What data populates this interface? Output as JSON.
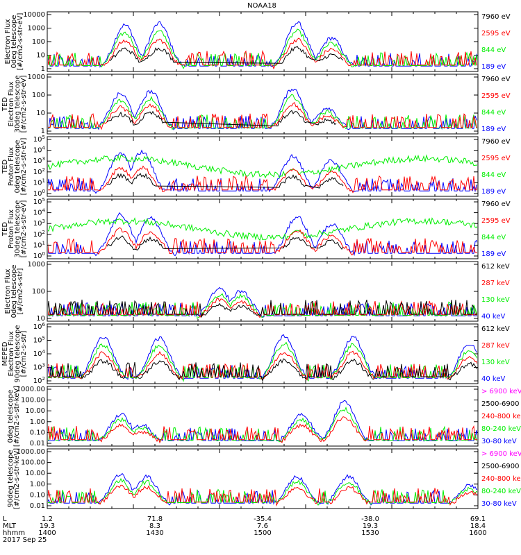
{
  "title": "NOAA18",
  "colors": {
    "blue": "#0000ff",
    "red": "#ff0000",
    "green": "#00ee00",
    "black": "#000000",
    "magenta": "#ff00ff"
  },
  "footer": {
    "row_labels": [
      "L",
      "MLT",
      "hhmm",
      "2017 Sep 25"
    ],
    "columns": [
      {
        "L": "1.2",
        "MLT": "19.3",
        "hhmm": "1400"
      },
      {
        "L": "71.8",
        "MLT": "8.3",
        "hhmm": "1430"
      },
      {
        "L": "-35.4",
        "MLT": "7.6",
        "hhmm": "1500"
      },
      {
        "L": "-38.0",
        "MLT": "19.3",
        "hhmm": "1530"
      },
      {
        "L": "69.1",
        "MLT": "18.4",
        "hhmm": "1600"
      }
    ]
  },
  "chart_data": [
    {
      "type": "line",
      "ylabel": [
        "Electron Flux",
        "0deg telescope",
        "[#/cm2-s-str-eV]"
      ],
      "y_scale": "log",
      "ticks": [
        "10000",
        "1000",
        "100",
        "10",
        "1"
      ],
      "legend": [
        {
          "text": "7960 eV",
          "color": "black"
        },
        {
          "text": "2595 eV",
          "color": "red"
        },
        {
          "text": "844 eV",
          "color": "green"
        },
        {
          "text": "189 eV",
          "color": "blue"
        }
      ]
    },
    {
      "type": "line",
      "ylabel": [
        "TED",
        "Electron Flux",
        "30deg telescope",
        "[#/cm2-s-str-eV]"
      ],
      "y_scale": "log",
      "ticks": [
        "1000",
        "100",
        "10",
        "1"
      ],
      "legend": [
        {
          "text": "7960 eV",
          "color": "black"
        },
        {
          "text": "2595 eV",
          "color": "red"
        },
        {
          "text": "844 eV",
          "color": "green"
        },
        {
          "text": "189 eV",
          "color": "blue"
        }
      ]
    },
    {
      "type": "line",
      "ylabel": [
        "TED",
        "Proton Flux",
        "0deg telescope",
        "[#/cm2-s-str-eV]"
      ],
      "y_scale": "log",
      "ticks": [
        "10^5",
        "10^4",
        "10^3",
        "10^2",
        "10^1",
        "10^0"
      ],
      "legend": [
        {
          "text": "7960 eV",
          "color": "black"
        },
        {
          "text": "2595 eV",
          "color": "red"
        },
        {
          "text": "844 eV",
          "color": "green"
        },
        {
          "text": "189 eV",
          "color": "blue"
        }
      ]
    },
    {
      "type": "line",
      "ylabel": [
        "TED",
        "Proton Flux",
        "30deg telescope",
        "[#/cm2-s-str-eV]"
      ],
      "y_scale": "log",
      "ticks": [
        "10^5",
        "10^4",
        "10^3",
        "10^2",
        "10^1",
        "10^0"
      ],
      "legend": [
        {
          "text": "7960 eV",
          "color": "black"
        },
        {
          "text": "2595 eV",
          "color": "red"
        },
        {
          "text": "844 eV",
          "color": "green"
        },
        {
          "text": "189 eV",
          "color": "blue"
        }
      ]
    },
    {
      "type": "line",
      "ylabel": [
        "Electron Flux",
        "0deg telescope",
        "[#/cm2-s-str]"
      ],
      "y_scale": "log",
      "ticks": [
        "1000",
        "100",
        "10"
      ],
      "legend": [
        {
          "text": "612 keV",
          "color": "black"
        },
        {
          "text": "287 keV",
          "color": "red"
        },
        {
          "text": "130 keV",
          "color": "green"
        },
        {
          "text": "40 keV",
          "color": "blue"
        }
      ]
    },
    {
      "type": "line",
      "ylabel": [
        "MEPED",
        "Electron Flux",
        "90deg telescope",
        "[#/cm2-s-str]"
      ],
      "y_scale": "log",
      "ticks": [
        "10^6",
        "10^5",
        "10^4",
        "10^3",
        "10^2"
      ],
      "legend": [
        {
          "text": "612 keV",
          "color": "black"
        },
        {
          "text": "287 keV",
          "color": "red"
        },
        {
          "text": "130 keV",
          "color": "green"
        },
        {
          "text": "40 keV",
          "color": "blue"
        }
      ]
    },
    {
      "type": "line",
      "ylabel": [
        "0deg telescope",
        "[#/cm2-s-str-keV]"
      ],
      "y_scale": "log",
      "ticks": [
        "1000.00",
        "100.00",
        "10.00",
        "1.00",
        "0.10",
        "0.01"
      ],
      "legend": [
        {
          "text": "> 6900 keV",
          "color": "magenta"
        },
        {
          "text": "2500-6900",
          "color": "black"
        },
        {
          "text": "240-800 ke",
          "color": "red"
        },
        {
          "text": "80-240 keV",
          "color": "green"
        },
        {
          "text": "30-80 keV",
          "color": "blue"
        }
      ]
    },
    {
      "type": "line",
      "ylabel": [
        "90deg telescope",
        "[#/cm2-s-str-keV]"
      ],
      "y_scale": "log",
      "ticks": [
        "1000.00",
        "100.00",
        "10.00",
        "1.00",
        "0.10",
        "0.01"
      ],
      "legend": [
        {
          "text": "> 6900 keV",
          "color": "magenta"
        },
        {
          "text": "2500-6900",
          "color": "black"
        },
        {
          "text": "240-800 ke",
          "color": "red"
        },
        {
          "text": "80-240 keV",
          "color": "green"
        },
        {
          "text": "30-80 keV",
          "color": "blue"
        }
      ]
    }
  ]
}
